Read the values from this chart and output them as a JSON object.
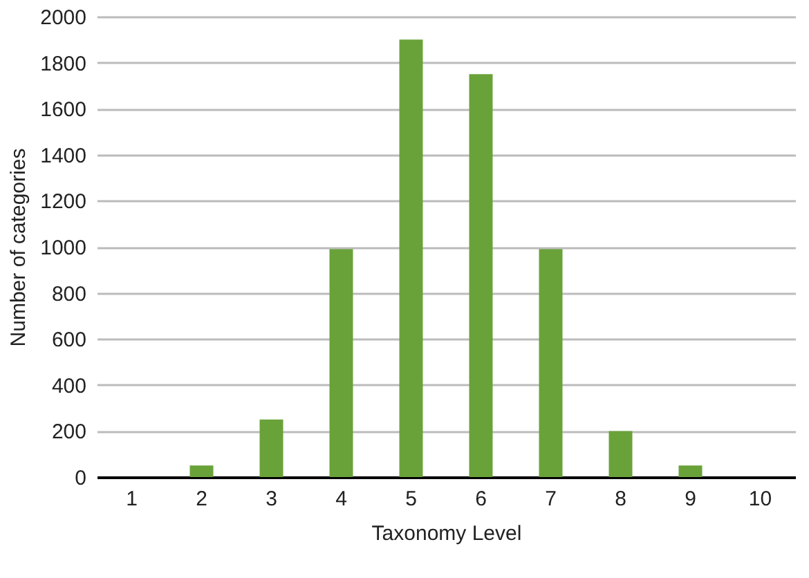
{
  "chart_data": {
    "type": "bar",
    "xlabel": "Taxonomy Level",
    "ylabel": "Number of categories",
    "categories": [
      "1",
      "2",
      "3",
      "4",
      "5",
      "6",
      "7",
      "8",
      "9",
      "10"
    ],
    "values": [
      0,
      50,
      250,
      990,
      1900,
      1750,
      990,
      200,
      50,
      0
    ],
    "color": "#6aa23a",
    "ylim": [
      0,
      2000
    ],
    "yticks": [
      0,
      200,
      400,
      600,
      800,
      1000,
      1200,
      1400,
      1600,
      1800,
      2000
    ],
    "grid": "y"
  }
}
